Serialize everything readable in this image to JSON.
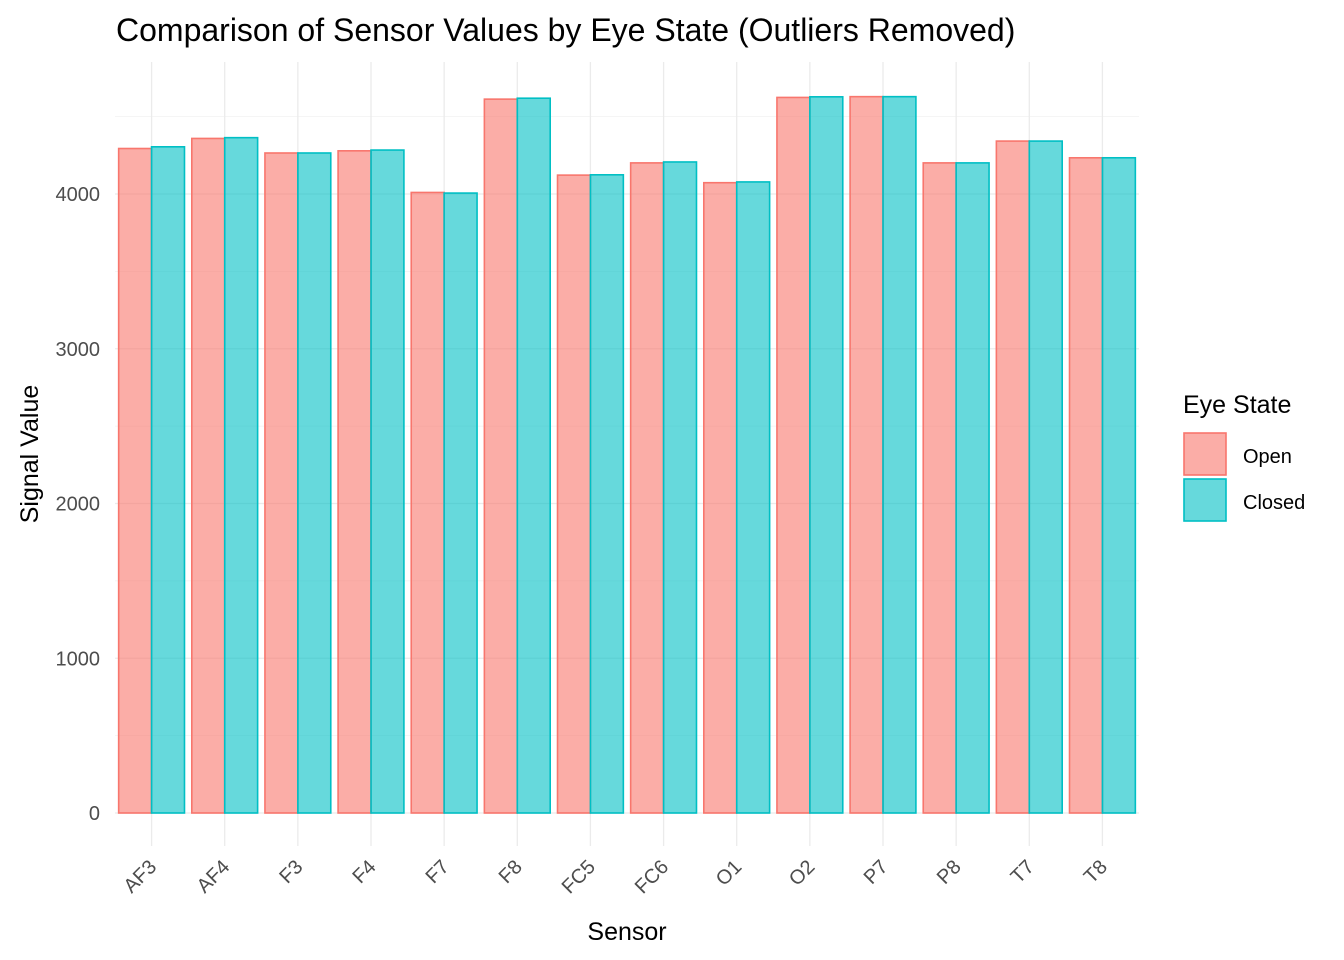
{
  "chart_data": {
    "type": "bar",
    "title": "Comparison of Sensor Values by Eye State (Outliers Removed)",
    "xlabel": "Sensor",
    "ylabel": "Signal Value",
    "categories": [
      "AF3",
      "AF4",
      "F3",
      "F4",
      "F7",
      "F8",
      "FC5",
      "FC6",
      "O1",
      "O2",
      "P7",
      "P8",
      "T7",
      "T8"
    ],
    "series": [
      {
        "name": "Open",
        "color": "#F8766D",
        "values": [
          4294,
          4359,
          4265,
          4279,
          4010,
          4613,
          4122,
          4201,
          4073,
          4624,
          4629,
          4201,
          4342,
          4234
        ]
      },
      {
        "name": "Closed",
        "color": "#00BFC4",
        "values": [
          4305,
          4364,
          4265,
          4284,
          4006,
          4619,
          4124,
          4207,
          4078,
          4628,
          4629,
          4201,
          4342,
          4234
        ]
      }
    ],
    "ylim": [
      0,
      4840
    ],
    "yticks": [
      0,
      1000,
      2000,
      3000,
      4000
    ],
    "legend": {
      "title": "Eye State",
      "position": "right"
    },
    "grid": true
  }
}
